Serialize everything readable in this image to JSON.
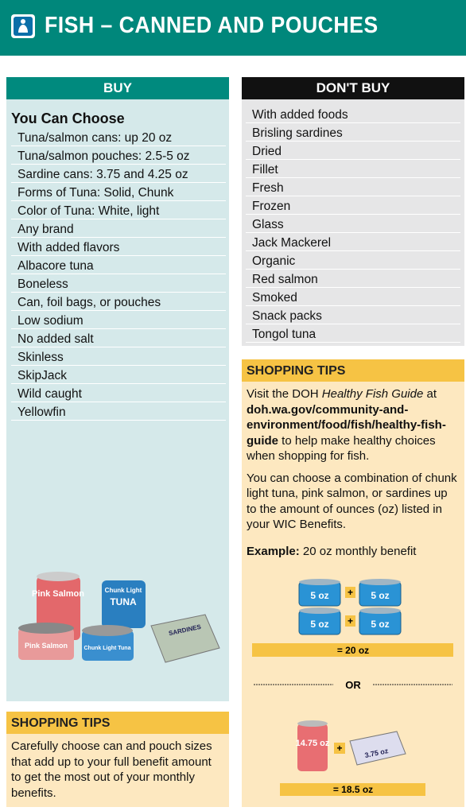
{
  "header": {
    "title": "FISH – CANNED AND POUCHES"
  },
  "buy": {
    "heading": "BUY",
    "subheading": "You Can Choose",
    "items": [
      "Tuna/salmon cans: up 20 oz",
      "Tuna/salmon pouches: 2.5-5 oz",
      "Sardine cans: 3.75 and 4.25 oz",
      "Forms of Tuna: Solid, Chunk",
      "Color of Tuna: White, light",
      "Any brand",
      "With added flavors",
      "Albacore tuna",
      "Boneless",
      "Can, foil bags, or pouches",
      "Low sodium",
      "No added salt",
      "Skinless",
      "SkipJack",
      "Wild caught",
      "Yellowfin"
    ],
    "product_labels": [
      "Pink Salmon",
      "Pink Salmon",
      "Chunk Light",
      "TUNA",
      "Chunk Light Tuna",
      "SARDINES"
    ]
  },
  "buy_tips": {
    "heading": "SHOPPING TIPS",
    "text": "Carefully choose can and pouch sizes that add up to your full benefit amount to get the most out of your monthly benefits."
  },
  "dont_buy": {
    "heading": "DON'T BUY",
    "items": [
      "With added foods",
      "Brisling sardines",
      "Dried",
      "Fillet",
      "Fresh",
      "Frozen",
      "Glass",
      "Jack Mackerel",
      "Organic",
      "Red salmon",
      "Smoked",
      "Snack packs",
      "Tongol tuna"
    ]
  },
  "tips": {
    "heading": "SHOPPING TIPS",
    "visit": "Visit the DOH ",
    "guide": "Healthy Fish Guide",
    "at": " at ",
    "url": "doh.wa.gov/community-and-environment/food/fish/healthy-fish-guide",
    "rest": " to help make healthy choices when shopping for fish.",
    "p2": "You can choose a combination of chunk light tuna, pink salmon, or sardines up to the amount of ounces (oz) listed in your WIC Benefits.",
    "example_label": "Example:",
    "example_text": " 20 oz monthly benefit",
    "cans": [
      "5 oz",
      "5 oz",
      "5 oz",
      "5 oz"
    ],
    "plus": "+",
    "total1": "= 20 oz",
    "or": "OR",
    "salmon_can": "14.75 oz",
    "sardine_can": "3.75 oz",
    "total2": "= 18.5 oz"
  }
}
